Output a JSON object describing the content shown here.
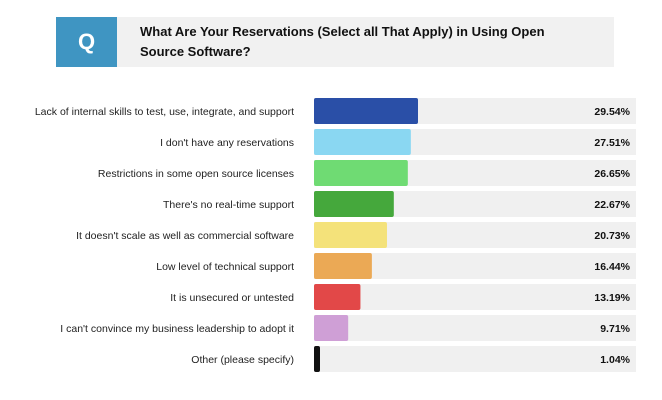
{
  "header": {
    "badge": "Q",
    "question": "What Are Your Reservations (Select all That Apply) in Using Open Source Software?"
  },
  "chart_data": {
    "type": "bar",
    "orientation": "horizontal",
    "title": "What Are Your Reservations (Select all That Apply) in Using Open Source Software?",
    "xlim": [
      0,
      100
    ],
    "categories": [
      "Lack of internal skills to test, use, integrate, and support",
      "I don't have any reservations",
      "Restrictions in some open source licenses",
      "There's no real-time support",
      "It doesn't scale as well as commercial software",
      "Low level of technical support",
      "It is unsecured or untested",
      "I can't convince my business leadership to adopt it",
      "Other (please specify)"
    ],
    "values": [
      29.54,
      27.51,
      26.65,
      22.67,
      20.73,
      16.44,
      13.19,
      9.71,
      1.04
    ],
    "value_labels": [
      "29.54%",
      "27.51%",
      "26.65%",
      "22.67%",
      "20.73%",
      "16.44%",
      "13.19%",
      "9.71%",
      "1.04%"
    ],
    "colors": [
      "#2a4fa7",
      "#8ad7f2",
      "#6fdb73",
      "#45a83c",
      "#f4e27a",
      "#eba955",
      "#e24848",
      "#cf9fd6",
      "#111111"
    ]
  }
}
